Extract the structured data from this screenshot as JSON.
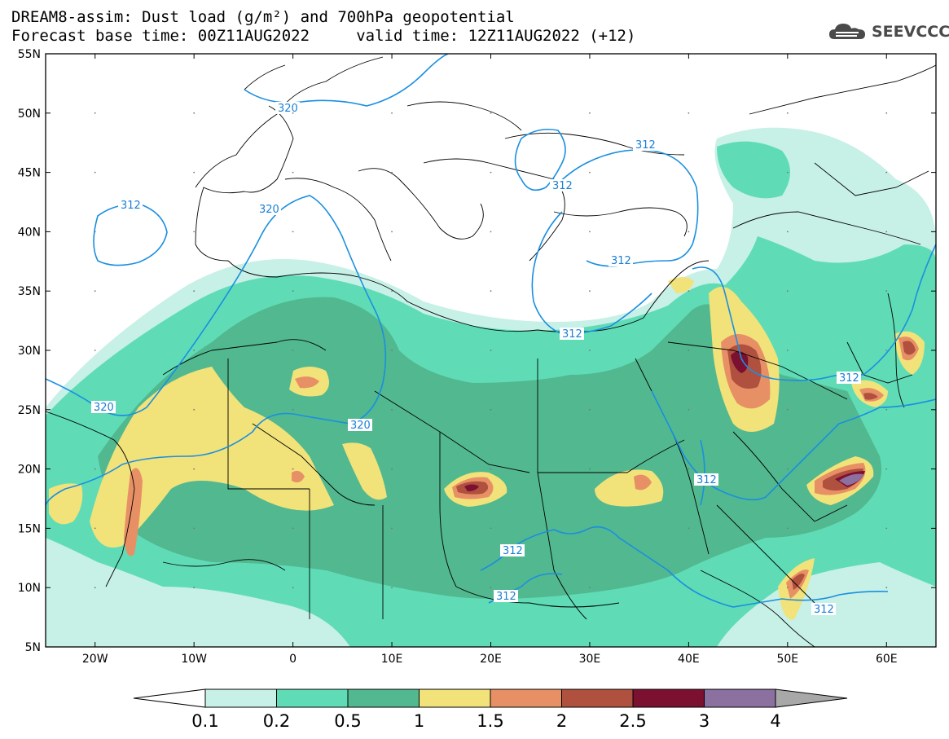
{
  "header": {
    "title_line1": "DREAM8-assim: Dust load (g/m²) and 700hPa geopotential",
    "title_line2": "Forecast base time: 00Z11AUG2022     valid time: 12Z11AUG2022 (+12)",
    "logo_text": "SEEVCCC"
  },
  "axes": {
    "lat_labels": [
      "55N",
      "50N",
      "45N",
      "40N",
      "35N",
      "30N",
      "25N",
      "20N",
      "15N",
      "10N",
      "5N"
    ],
    "lon_labels": [
      "20W",
      "10W",
      "0",
      "10E",
      "20E",
      "30E",
      "40E",
      "50E",
      "60E"
    ]
  },
  "legend": {
    "labels": [
      "0.1",
      "0.2",
      "0.5",
      "1",
      "1.5",
      "2",
      "2.5",
      "3",
      "4"
    ],
    "colors": [
      "#c7f0e6",
      "#5fdcb6",
      "#52b88f",
      "#f2e27a",
      "#e89065",
      "#b0503e",
      "#7c1030",
      "#8c70a0"
    ],
    "under_color": "#ffffff",
    "over_color": "#a8a8a8"
  },
  "contour_labels": {
    "c312": "312",
    "c320": "320"
  },
  "colors": {
    "contour": "#1a8fe0",
    "border": "#000000"
  }
}
